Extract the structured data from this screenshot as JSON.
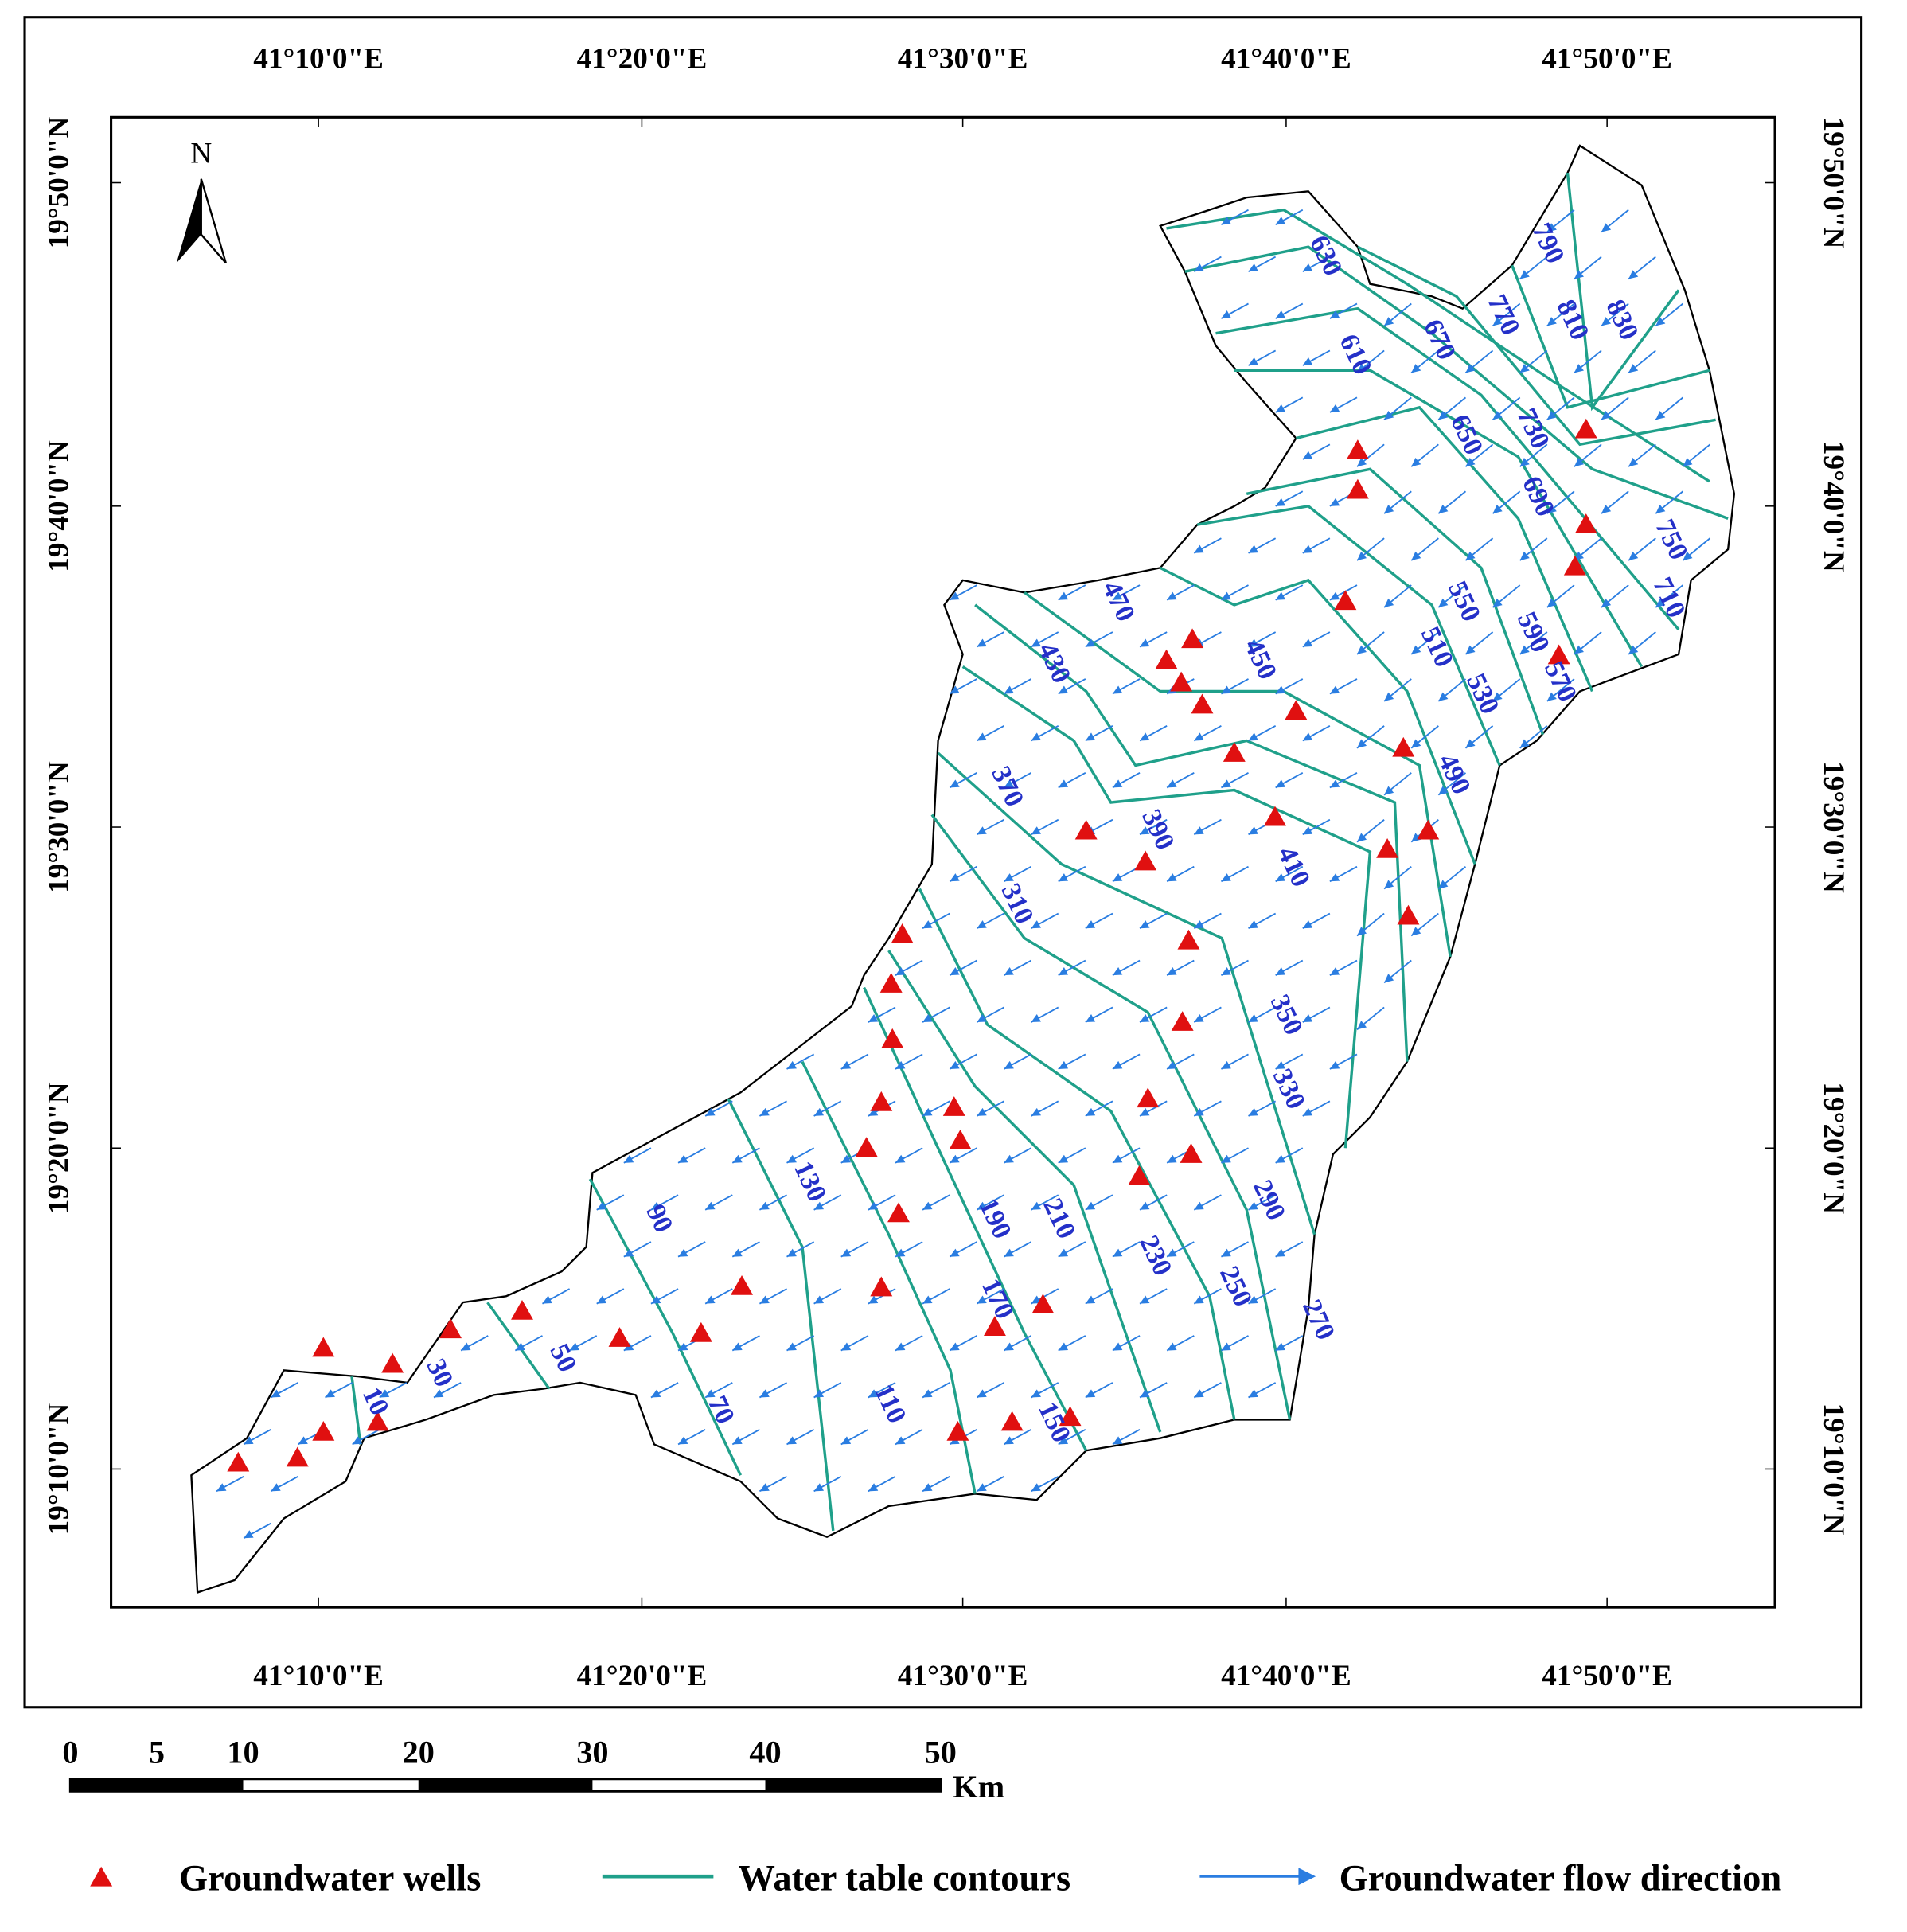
{
  "graticule": {
    "longitudes": [
      "41°10'0\"E",
      "41°20'0\"E",
      "41°30'0\"E",
      "41°40'0\"E",
      "41°50'0\"E"
    ],
    "latitudes": [
      "19°50'0\"N",
      "19°40'0\"N",
      "19°30'0\"N",
      "19°20'0\"N",
      "19°10'0\"N"
    ]
  },
  "north_arrow": "N",
  "contour_labels": [
    "630",
    "610",
    "670",
    "770",
    "790",
    "810",
    "830",
    "650",
    "730",
    "690",
    "750",
    "710",
    "550",
    "510",
    "530",
    "590",
    "570",
    "490",
    "470",
    "430",
    "450",
    "370",
    "390",
    "410",
    "310",
    "350",
    "330",
    "290",
    "250",
    "270",
    "230",
    "210",
    "190",
    "170",
    "130",
    "90",
    "150",
    "110",
    "70",
    "50",
    "30",
    "10"
  ],
  "scale_bar": {
    "labels": [
      "0",
      "5",
      "10",
      "20",
      "30",
      "40",
      "50"
    ],
    "unit": "Km"
  },
  "legend": [
    "Groundwater wells",
    "Water table contours",
    "Groundwater flow direction"
  ]
}
